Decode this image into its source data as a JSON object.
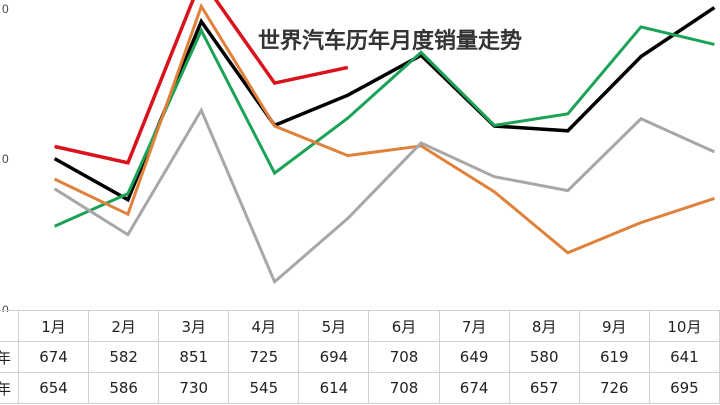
{
  "chart_data": {
    "type": "line",
    "title": "世界汽车历年月度销量走势",
    "categories": [
      "1月",
      "2月",
      "3月",
      "4月",
      "5月",
      "6月",
      "7月",
      "8月",
      "9月",
      "10月"
    ],
    "y_ticks_visible": [
      "0",
      "0",
      "0"
    ],
    "ylim": [
      400,
      900
    ],
    "grid": false,
    "legend": "none",
    "series": [
      {
        "color": "#d9121b",
        "width": 3.5,
        "values": [
          674,
          647,
          951,
          779,
          805,
          null,
          null,
          null,
          null,
          null
        ]
      },
      {
        "color": "#000000",
        "width": 3.5,
        "values": [
          654,
          586,
          881,
          709,
          759,
          825,
          708,
          700,
          823,
          904
        ]
      },
      {
        "color": "#1aa357",
        "width": 3,
        "values": [
          542,
          596,
          866,
          630,
          721,
          830,
          709,
          728,
          872,
          843
        ]
      },
      {
        "color": "#e0813b",
        "width": 3,
        "values": [
          620,
          562,
          906,
          708,
          659,
          675,
          599,
          498,
          548,
          588
        ]
      },
      {
        "color": "#a7a7a7",
        "width": 3,
        "values": [
          604,
          528,
          734,
          450,
          555,
          680,
          624,
          601,
          720,
          665
        ]
      }
    ],
    "table": {
      "rows": [
        {
          "label": "年",
          "values": [
            "674",
            "582",
            "851",
            "725",
            "694",
            "708",
            "649",
            "580",
            "619",
            "641"
          ]
        },
        {
          "label": "年",
          "values": [
            "654",
            "586",
            "730",
            "545",
            "614",
            "708",
            "674",
            "657",
            "726",
            "695"
          ]
        }
      ]
    }
  }
}
